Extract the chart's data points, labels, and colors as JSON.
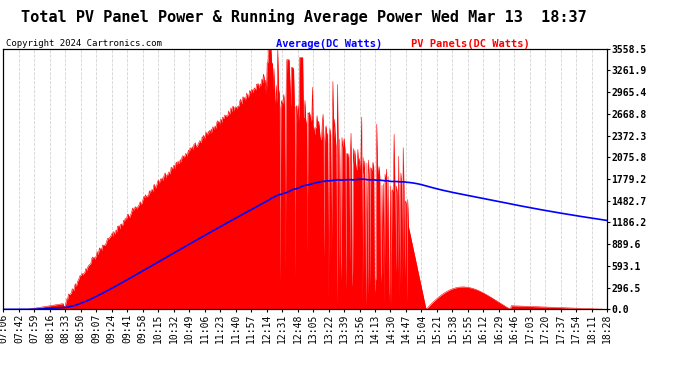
{
  "title": "Total PV Panel Power & Running Average Power Wed Mar 13  18:37",
  "copyright": "Copyright 2024 Cartronics.com",
  "ylabel_right_values": [
    3558.5,
    3261.9,
    2965.4,
    2668.8,
    2372.3,
    2075.8,
    1779.2,
    1482.7,
    1186.2,
    889.6,
    593.1,
    296.5,
    0.0
  ],
  "ymax": 3558.5,
  "ymin": 0.0,
  "legend_average": "Average(DC Watts)",
  "legend_pv": "PV Panels(DC Watts)",
  "background_color": "#ffffff",
  "grid_color": "#c8c8c8",
  "fill_color": "#ff0000",
  "line_color": "#0000ff",
  "title_fontsize": 11,
  "tick_fontsize": 7,
  "x_tick_labels": [
    "07:06",
    "07:42",
    "07:59",
    "08:16",
    "08:33",
    "08:50",
    "09:07",
    "09:24",
    "09:41",
    "09:58",
    "10:15",
    "10:32",
    "10:49",
    "11:06",
    "11:23",
    "11:40",
    "11:57",
    "12:14",
    "12:31",
    "12:48",
    "13:05",
    "13:22",
    "13:39",
    "13:56",
    "14:13",
    "14:30",
    "14:47",
    "15:04",
    "15:21",
    "15:38",
    "15:55",
    "16:12",
    "16:29",
    "16:46",
    "17:03",
    "17:20",
    "17:37",
    "17:54",
    "18:11",
    "18:28"
  ],
  "n_points": 800
}
